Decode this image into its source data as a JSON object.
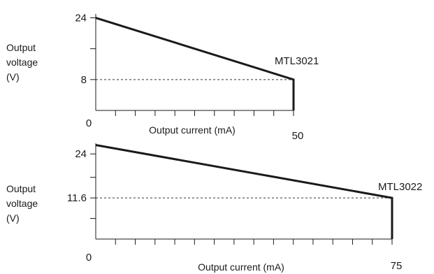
{
  "chart_data": [
    {
      "type": "line",
      "title": "",
      "series_label": "MTL3021",
      "xlabel": "Output current (mA)",
      "ylabel_lines": [
        "Output",
        "voltage",
        "(V)"
      ],
      "xlim": [
        0,
        50
      ],
      "ylim": [
        0,
        25
      ],
      "x_ticks": [
        0,
        5,
        10,
        15,
        20,
        25,
        30,
        35,
        40,
        45,
        50
      ],
      "x_tick_labels": [
        {
          "value": 0,
          "text": "0"
        },
        {
          "value": 50,
          "text": "50"
        }
      ],
      "y_ticks": [
        0,
        8,
        16,
        24
      ],
      "y_tick_labels": [
        {
          "value": 8,
          "text": "8"
        },
        {
          "value": 24,
          "text": "24"
        }
      ],
      "series": [
        {
          "x": [
            0,
            50,
            50
          ],
          "y": [
            24,
            8,
            0
          ]
        }
      ],
      "reference": {
        "x": 50,
        "y": 8
      }
    },
    {
      "type": "line",
      "title": "",
      "series_label": "MTL3022",
      "xlabel": "Output current (mA)",
      "ylabel_lines": [
        "Output",
        "voltage",
        "(V)"
      ],
      "xlim": [
        0,
        75
      ],
      "ylim": [
        0,
        27
      ],
      "x_ticks": [
        0,
        5,
        10,
        15,
        20,
        25,
        30,
        35,
        40,
        45,
        50,
        55,
        60,
        65,
        70,
        75
      ],
      "x_tick_labels": [
        {
          "value": 0,
          "text": "0"
        },
        {
          "value": 75,
          "text": "75"
        }
      ],
      "y_ticks": [
        0,
        5.8,
        11.6,
        17.4,
        24
      ],
      "y_tick_labels": [
        {
          "value": 11.6,
          "text": "11.6"
        },
        {
          "value": 24,
          "text": "24"
        }
      ],
      "series": [
        {
          "x": [
            0,
            75,
            75
          ],
          "y": [
            26.5,
            11.6,
            0
          ]
        }
      ],
      "reference": {
        "x": 75,
        "y": 11.6
      }
    }
  ]
}
